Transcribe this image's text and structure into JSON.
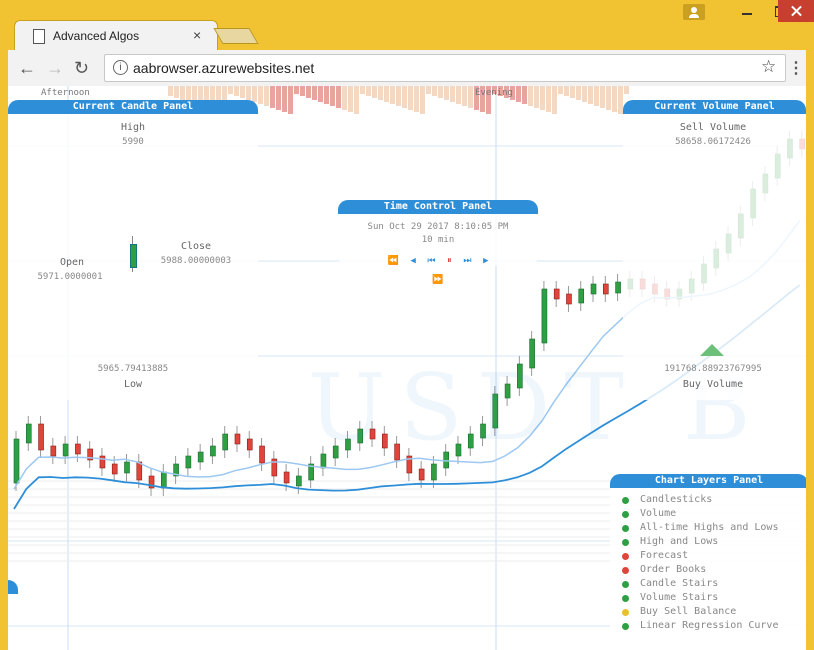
{
  "browser": {
    "tab_title": "Advanced Algos",
    "tab_close": "×",
    "url": "aabrowser.azurewebsites.net",
    "info_icon": "i",
    "back_icon": "←",
    "forward_icon": "→",
    "reload_icon": "↻",
    "star_icon": "☆",
    "menu_icon": "⋮"
  },
  "sessions": [
    "Afternoon",
    "Evening"
  ],
  "candle_panel": {
    "title": "Current Candle Panel",
    "high_label": "High",
    "high_value": "5990",
    "open_label": "Open",
    "open_value": "5971.0000001",
    "close_label": "Close",
    "close_value": "5988.00000003",
    "low_value": "5965.79413885",
    "low_label": "Low"
  },
  "time_panel": {
    "title": "Time Control Panel",
    "datetime": "Sun Oct 29 2017 8:10:05 PM",
    "interval": "10 min",
    "buttons": [
      "⏪",
      "◀",
      "⏮",
      "⏸",
      "⏭",
      "▶",
      "⏩"
    ]
  },
  "volume_panel": {
    "title": "Current Volume Panel",
    "sell_label": "Sell Volume",
    "sell_value": "58658.06172426",
    "buy_value": "191768.88923767995",
    "buy_label": "Buy Volume"
  },
  "watermark": "USDT B",
  "layers_panel": {
    "title": "Chart Layers Panel",
    "items": [
      {
        "label": "Candlesticks",
        "color": "#2ea043"
      },
      {
        "label": "Volume",
        "color": "#2ea043"
      },
      {
        "label": "All-time Highs and Lows",
        "color": "#2ea043"
      },
      {
        "label": "High and Lows",
        "color": "#2ea043"
      },
      {
        "label": "Forecast",
        "color": "#e0443a"
      },
      {
        "label": "Order Books",
        "color": "#e0443a"
      },
      {
        "label": "Candle Stairs",
        "color": "#2ea043"
      },
      {
        "label": "Volume Stairs",
        "color": "#2ea043"
      },
      {
        "label": "Buy Sell Balance",
        "color": "#e6c228"
      },
      {
        "label": "Linear Regression Curve",
        "color": "#2ea043"
      }
    ]
  },
  "colors": {
    "accent": "#2e8fd8",
    "up": "#2ea043",
    "down": "#e0443a",
    "frame": "#f1c231"
  }
}
